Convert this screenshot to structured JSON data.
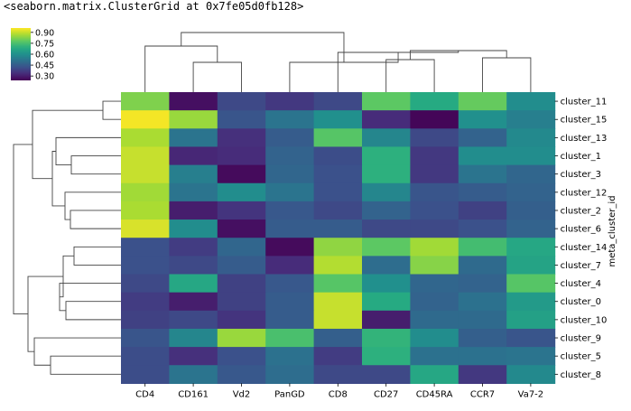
{
  "output_repr": "<seaborn.matrix.ClusterGrid at 0x7fe05d0fb128>",
  "chart_data": {
    "type": "heatmap",
    "title": "",
    "xlabel": "",
    "ylabel": "meta_cluster_id",
    "colormap": "viridis",
    "colorbar": {
      "ticks": [
        0.9,
        0.75,
        0.6,
        0.45,
        0.3
      ],
      "tick_labels": [
        "0.90",
        "0.75",
        "0.60",
        "0.45",
        "0.30"
      ],
      "vmin": 0.24,
      "vmax": 0.96,
      "placement": "top-left"
    },
    "columns": [
      "CD4",
      "CD161",
      "Vd2",
      "PanGD",
      "CD8",
      "CD27",
      "CD45RA",
      "CCR7",
      "Va7-2"
    ],
    "rows": [
      "cluster_11",
      "cluster_15",
      "cluster_13",
      "cluster_1",
      "cluster_3",
      "cluster_12",
      "cluster_2",
      "cluster_6",
      "cluster_14",
      "cluster_7",
      "cluster_4",
      "cluster_0",
      "cluster_10",
      "cluster_9",
      "cluster_5",
      "cluster_8"
    ],
    "values": [
      [
        0.82,
        0.27,
        0.4,
        0.36,
        0.4,
        0.78,
        0.68,
        0.79,
        0.59
      ],
      [
        0.95,
        0.85,
        0.43,
        0.52,
        0.6,
        0.33,
        0.25,
        0.6,
        0.55
      ],
      [
        0.87,
        0.52,
        0.34,
        0.45,
        0.77,
        0.57,
        0.4,
        0.47,
        0.58
      ],
      [
        0.9,
        0.32,
        0.33,
        0.47,
        0.41,
        0.7,
        0.36,
        0.59,
        0.59
      ],
      [
        0.9,
        0.55,
        0.26,
        0.48,
        0.42,
        0.7,
        0.36,
        0.52,
        0.48
      ],
      [
        0.86,
        0.52,
        0.59,
        0.52,
        0.42,
        0.57,
        0.43,
        0.45,
        0.47
      ],
      [
        0.87,
        0.3,
        0.35,
        0.44,
        0.4,
        0.47,
        0.42,
        0.38,
        0.46
      ],
      [
        0.92,
        0.59,
        0.27,
        0.45,
        0.45,
        0.4,
        0.4,
        0.42,
        0.47
      ],
      [
        0.42,
        0.37,
        0.48,
        0.26,
        0.84,
        0.78,
        0.86,
        0.74,
        0.67
      ],
      [
        0.42,
        0.4,
        0.45,
        0.33,
        0.88,
        0.5,
        0.83,
        0.49,
        0.66
      ],
      [
        0.4,
        0.67,
        0.38,
        0.44,
        0.77,
        0.6,
        0.48,
        0.47,
        0.77
      ],
      [
        0.37,
        0.3,
        0.38,
        0.45,
        0.9,
        0.68,
        0.47,
        0.51,
        0.63
      ],
      [
        0.38,
        0.4,
        0.35,
        0.45,
        0.9,
        0.3,
        0.49,
        0.49,
        0.65
      ],
      [
        0.43,
        0.57,
        0.85,
        0.75,
        0.46,
        0.71,
        0.59,
        0.46,
        0.43
      ],
      [
        0.41,
        0.34,
        0.42,
        0.51,
        0.37,
        0.7,
        0.51,
        0.51,
        0.52
      ],
      [
        0.41,
        0.52,
        0.44,
        0.5,
        0.4,
        0.4,
        0.67,
        0.36,
        0.58
      ]
    ],
    "grid": false
  }
}
